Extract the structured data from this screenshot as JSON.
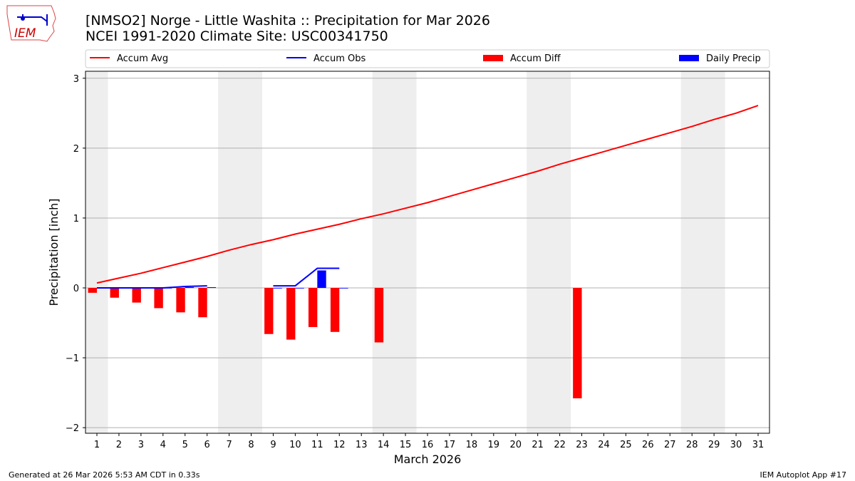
{
  "logo_text": "IEM",
  "footer": {
    "left": "Generated at 26 Mar 2026 5:53 AM CDT in 0.33s",
    "right": "IEM Autoplot App #17"
  },
  "chart_data": {
    "type": "line",
    "title": "[NMSO2] Norge - Little Washita :: Precipitation for Mar 2026",
    "subtitle": "NCEI 1991-2020 Climate Site: USC00341750",
    "xlabel": "March 2026",
    "ylabel": "Precipitation [inch]",
    "ylim": [
      -2.08,
      3.1
    ],
    "yticks": [
      3,
      2,
      1,
      0,
      -1,
      -2
    ],
    "ytick_labels": [
      "3",
      "2",
      "1",
      "0",
      "−1",
      "−2"
    ],
    "x": [
      1,
      2,
      3,
      4,
      5,
      6,
      7,
      8,
      9,
      10,
      11,
      12,
      13,
      14,
      15,
      16,
      17,
      18,
      19,
      20,
      21,
      22,
      23,
      24,
      25,
      26,
      27,
      28,
      29,
      30,
      31
    ],
    "grid": "y",
    "legend_placement": "top",
    "weekend_shading": [
      [
        0.5,
        1.5
      ],
      [
        6.5,
        8.5
      ],
      [
        13.5,
        15.5
      ],
      [
        20.5,
        22.5
      ],
      [
        27.5,
        29.5
      ]
    ],
    "series": [
      {
        "name": "Accum Avg",
        "kind": "line",
        "color": "#ff0000",
        "values": [
          0.07,
          0.14,
          0.21,
          0.29,
          0.37,
          0.45,
          0.54,
          0.62,
          0.69,
          0.77,
          0.84,
          0.91,
          0.99,
          1.06,
          1.14,
          1.22,
          1.31,
          1.4,
          1.49,
          1.58,
          1.67,
          1.77,
          1.86,
          1.95,
          2.04,
          2.13,
          2.22,
          2.31,
          2.41,
          2.5,
          2.61
        ]
      },
      {
        "name": "Accum Obs",
        "kind": "line",
        "color": "#0000ff",
        "values": [
          0,
          0,
          0,
          0,
          0.02,
          0.03,
          null,
          null,
          0.03,
          0.03,
          0.28,
          0.28,
          null,
          null,
          null,
          null,
          null,
          null,
          null,
          null,
          null,
          null,
          null,
          null,
          null,
          null,
          null,
          null,
          null,
          null,
          null
        ]
      },
      {
        "name": "Accum Diff",
        "kind": "bar",
        "color": "#ff0000",
        "values": [
          -0.07,
          -0.14,
          -0.21,
          -0.29,
          -0.35,
          -0.42,
          null,
          null,
          -0.66,
          -0.74,
          -0.56,
          -0.63,
          null,
          -0.78,
          null,
          null,
          null,
          null,
          null,
          null,
          null,
          null,
          -1.58,
          null,
          null,
          null,
          null,
          null,
          null,
          null,
          null
        ]
      },
      {
        "name": "Daily Precip",
        "kind": "bar",
        "color": "#0000ff",
        "values": [
          0,
          0,
          0,
          0,
          0.01,
          0.01,
          null,
          null,
          0,
          0,
          0.25,
          0,
          null,
          null,
          null,
          null,
          null,
          null,
          null,
          null,
          null,
          null,
          null,
          null,
          null,
          null,
          null,
          null,
          null,
          null,
          null
        ]
      }
    ]
  }
}
